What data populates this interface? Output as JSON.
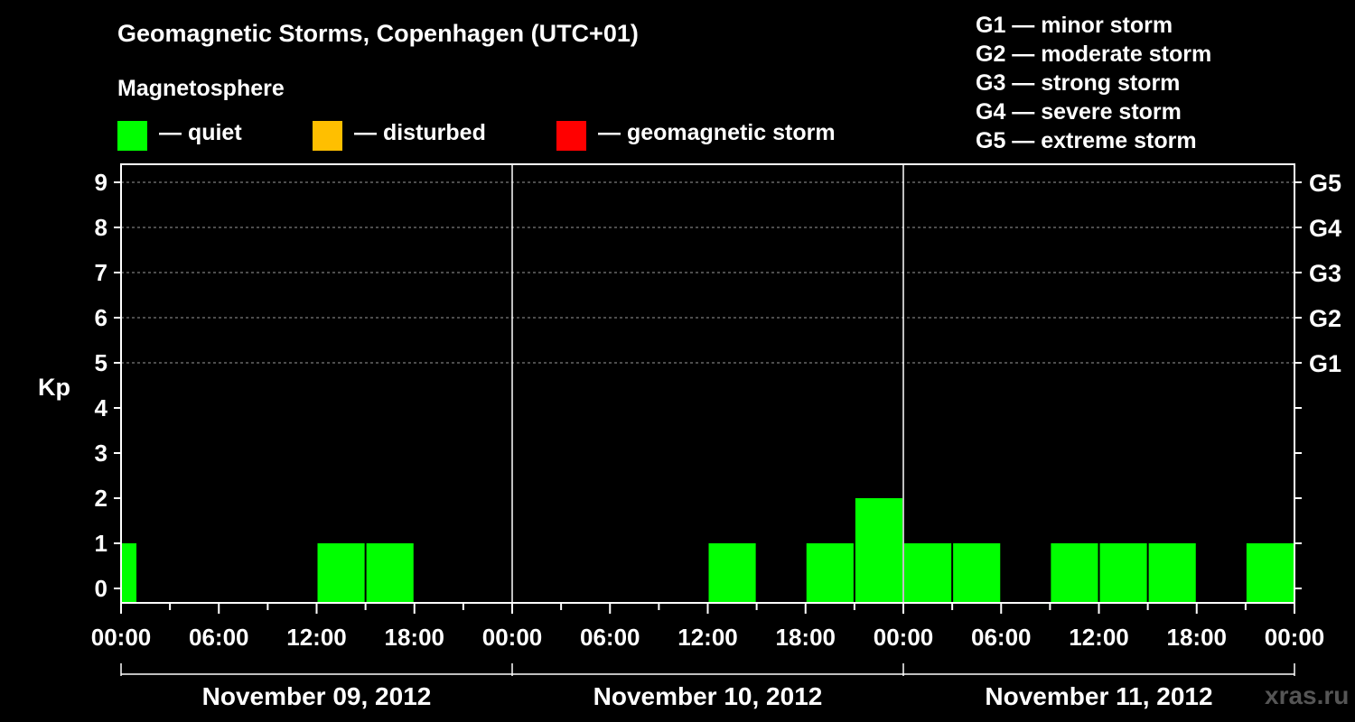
{
  "chart_data": {
    "type": "bar",
    "title": "Geomagnetic Storms, Copenhagen (UTC+01)",
    "ylabel": "Kp",
    "ylim": [
      0,
      9
    ],
    "y_ticks": [
      "0",
      "1",
      "2",
      "3",
      "4",
      "5",
      "6",
      "7",
      "8",
      "9"
    ],
    "storm_levels": [
      {
        "label": "G1",
        "kp": 5
      },
      {
        "label": "G2",
        "kp": 6
      },
      {
        "label": "G3",
        "kp": 7
      },
      {
        "label": "G4",
        "kp": 8
      },
      {
        "label": "G5",
        "kp": 9
      }
    ],
    "x_tick_labels": [
      "00:00",
      "06:00",
      "12:00",
      "18:00",
      "00:00",
      "06:00",
      "12:00",
      "18:00",
      "00:00",
      "06:00",
      "12:00",
      "18:00",
      "00:00"
    ],
    "days": [
      "November 09, 2012",
      "November 10, 2012",
      "November 11, 2012"
    ],
    "bars": [
      {
        "start": "2012-11-09 00:00",
        "end": "2012-11-09 01:00",
        "kp": 1
      },
      {
        "start": "2012-11-09 12:00",
        "end": "2012-11-09 15:00",
        "kp": 1
      },
      {
        "start": "2012-11-09 15:00",
        "end": "2012-11-09 18:00",
        "kp": 1
      },
      {
        "start": "2012-11-10 12:00",
        "end": "2012-11-10 15:00",
        "kp": 1
      },
      {
        "start": "2012-11-10 18:00",
        "end": "2012-11-10 21:00",
        "kp": 1
      },
      {
        "start": "2012-11-10 21:00",
        "end": "2012-11-11 00:00",
        "kp": 2
      },
      {
        "start": "2012-11-11 00:00",
        "end": "2012-11-11 03:00",
        "kp": 1
      },
      {
        "start": "2012-11-11 03:00",
        "end": "2012-11-11 06:00",
        "kp": 1
      },
      {
        "start": "2012-11-11 09:00",
        "end": "2012-11-11 12:00",
        "kp": 1
      },
      {
        "start": "2012-11-11 12:00",
        "end": "2012-11-11 15:00",
        "kp": 1
      },
      {
        "start": "2012-11-11 15:00",
        "end": "2012-11-11 18:00",
        "kp": 1
      },
      {
        "start": "2012-11-11 21:00",
        "end": "2012-11-12 00:00",
        "kp": 1
      }
    ],
    "grid": true
  },
  "legend": {
    "magnetosphere_title": "Magnetosphere",
    "states": [
      {
        "label": "— quiet",
        "color": "#00ff00"
      },
      {
        "label": "— disturbed",
        "color": "#ffbf00"
      },
      {
        "label": "— geomagnetic storm",
        "color": "#ff0000"
      }
    ],
    "storm_scale": [
      "G1 — minor storm",
      "G2 — moderate storm",
      "G3 — strong storm",
      "G4 — severe storm",
      "G5 — extreme storm"
    ]
  },
  "watermark": "xras.ru"
}
